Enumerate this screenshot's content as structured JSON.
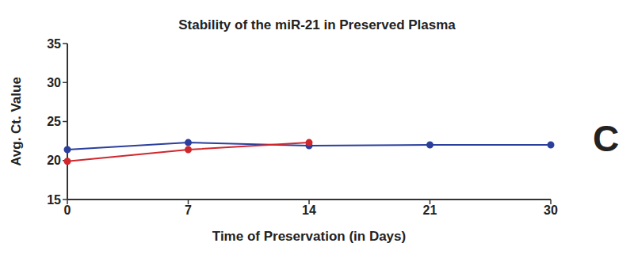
{
  "chart_data": {
    "type": "line",
    "title": "Stability of the miR-21 in Preserved Plasma",
    "panel_label": "C",
    "x_label": "Time of Preservation (in Days)",
    "y_label": "Avg. Ct. Value",
    "categories": [
      "0",
      "7",
      "14",
      "21",
      "30"
    ],
    "series": [
      {
        "color": "#2b3f9c",
        "values": [
          21.4,
          22.3,
          21.9,
          22.0,
          22.0
        ]
      },
      {
        "color": "#d0272d",
        "values": [
          19.9,
          21.4,
          22.3,
          null,
          null
        ]
      }
    ],
    "ylim": [
      15,
      35
    ],
    "yticks": [
      15,
      20,
      25,
      30,
      35
    ],
    "grid": false
  }
}
